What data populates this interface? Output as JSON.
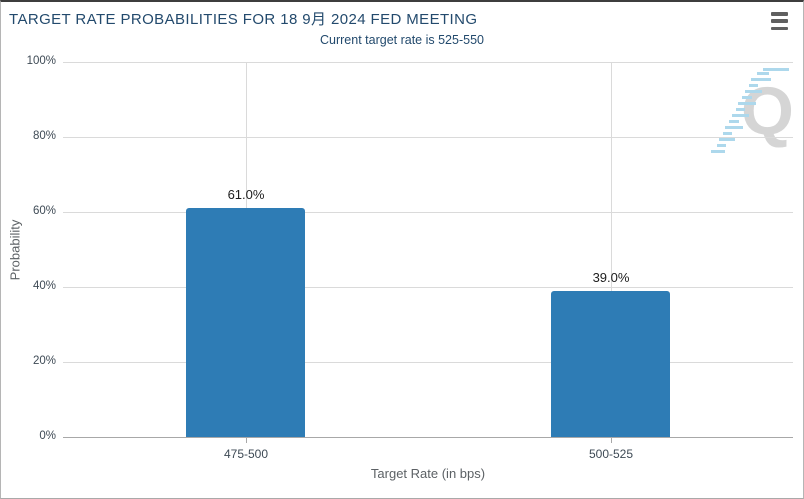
{
  "header": {
    "title": "TARGET RATE PROBABILITIES FOR 18 9月 2024 FED MEETING",
    "subtitle": "Current target rate is 525-550"
  },
  "menu": {
    "icon": "hamburger-icon",
    "tooltip_label": "Chart context menu"
  },
  "watermark": {
    "icon": "quikstrike-q-logo-icon",
    "letter": "Q"
  },
  "colors": {
    "bar_fill": "#2e7cb5",
    "title_text": "#234a6d",
    "gridline": "#dadada",
    "axis_line": "#a8a8a8",
    "watermark_gray": "#d3d3d3",
    "watermark_blue": "#a9d6ec",
    "top_border": "#3d3d3d"
  },
  "chart_data": {
    "type": "bar",
    "title": "TARGET RATE PROBABILITIES FOR 18 9月 2024 FED MEETING",
    "subtitle": "Current target rate is 525-550",
    "categories": [
      "475-500",
      "500-525"
    ],
    "values": [
      61.0,
      39.0
    ],
    "value_labels": [
      "61.0%",
      "39.0%"
    ],
    "xlabel": "Target Rate (in bps)",
    "ylabel": "Probability",
    "ylim": [
      0,
      100
    ],
    "yticks": [
      0,
      20,
      40,
      60,
      80,
      100
    ],
    "ytick_labels": [
      "0%",
      "20%",
      "40%",
      "60%",
      "80%",
      "100%"
    ],
    "grid": true,
    "legend": false
  }
}
